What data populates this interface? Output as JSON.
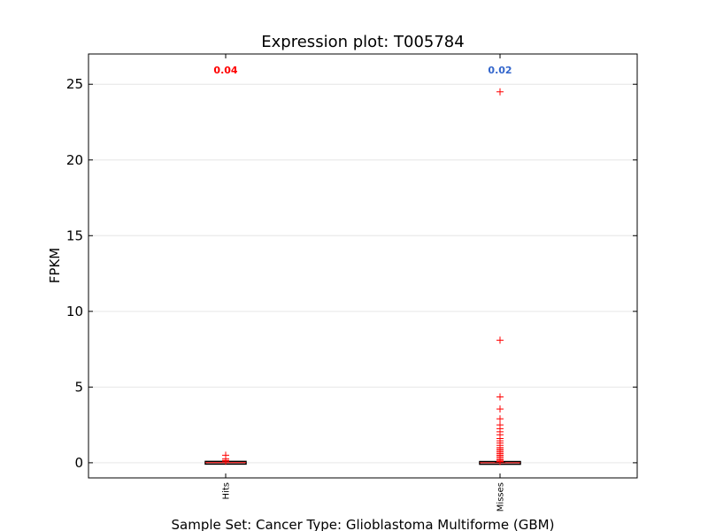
{
  "chart_data": {
    "type": "box",
    "title": "Expression plot: T005784",
    "xlabel": "Sample Set: Cancer Type: Glioblastoma Multiforme (GBM)",
    "ylabel": "FPKM",
    "ylim": [
      -1,
      27
    ],
    "yticks": [
      "0",
      "5",
      "10",
      "15",
      "20",
      "25"
    ],
    "grid": true,
    "categories": [
      "Hits",
      "Misses"
    ],
    "stats": [
      {
        "label": "0.04",
        "color": "#ff0000"
      },
      {
        "label": "0.02",
        "color": "#3366cc"
      }
    ],
    "boxes": [
      {
        "category": "Hits",
        "q1": 0.0,
        "median": 0.01,
        "q3": 0.03,
        "whisker_low": 0.0,
        "whisker_high": 0.08
      },
      {
        "category": "Misses",
        "q1": 0.0,
        "median": 0.0,
        "q3": 0.02,
        "whisker_low": 0.0,
        "whisker_high": 0.05
      }
    ],
    "outliers": [
      {
        "category": "Hits",
        "values": [
          0.5,
          0.25,
          0.15,
          0.1
        ]
      },
      {
        "category": "Misses",
        "values": [
          24.5,
          8.1,
          4.35,
          3.55,
          2.9,
          2.5,
          2.25,
          2.05,
          1.85,
          1.6,
          1.45,
          1.3,
          1.15,
          1.0,
          0.9,
          0.8,
          0.7,
          0.6,
          0.5,
          0.4,
          0.3,
          0.2,
          0.12,
          0.08
        ]
      }
    ],
    "colors": {
      "outlier": "#ff0000",
      "box": "#000000",
      "median": "#ff0000",
      "grid": "#e6e6e6"
    }
  }
}
